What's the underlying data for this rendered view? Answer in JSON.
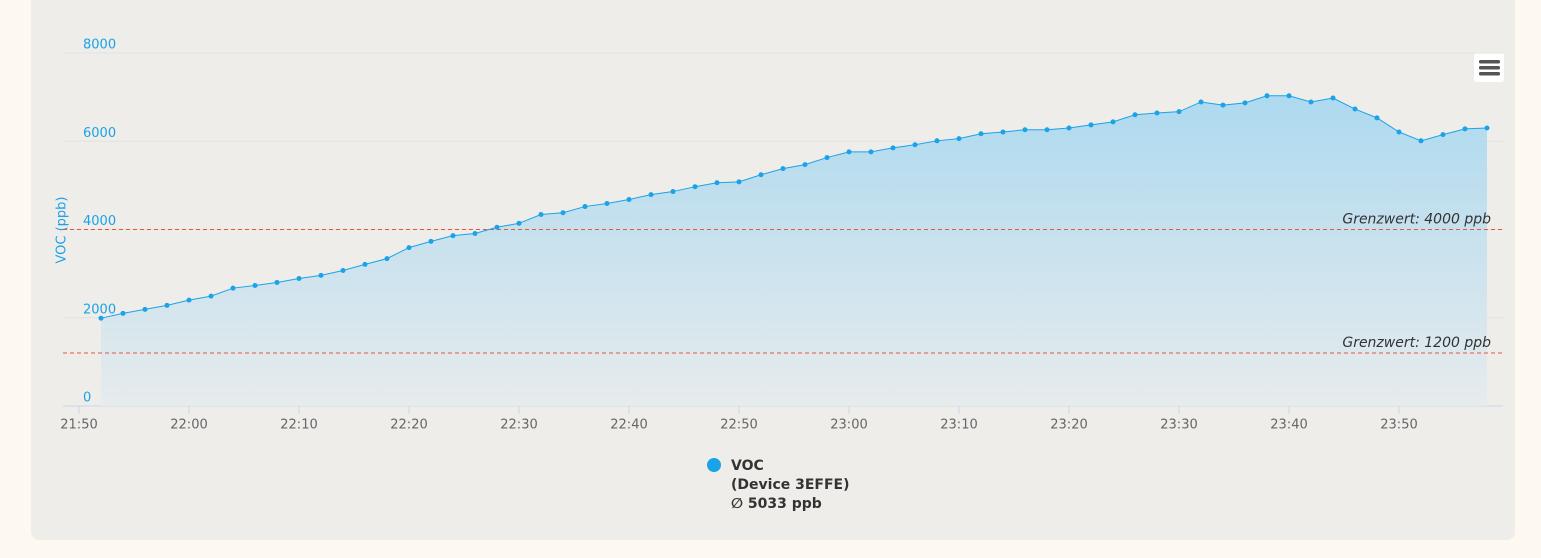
{
  "chart_data": {
    "type": "area",
    "y_axis_label": "VOC (ppb)",
    "xlim": [
      "21:48",
      "23:59"
    ],
    "xticks": [
      "21:50",
      "22:00",
      "22:10",
      "22:20",
      "22:30",
      "22:40",
      "22:50",
      "23:00",
      "23:10",
      "23:20",
      "23:30",
      "23:40",
      "23:50"
    ],
    "ylim": [
      0,
      8000
    ],
    "yticks": [
      0,
      2000,
      4000,
      6000,
      8000
    ],
    "grid": true,
    "plot_lines": [
      {
        "value": 4000,
        "label": "Grenzwert: 4000 ppb",
        "color": "#e8553a"
      },
      {
        "value": 1200,
        "label": "Grenzwert: 1200 ppb",
        "color": "#e8553a"
      }
    ],
    "series": [
      {
        "name": "VOC",
        "device": "(Device 3EFFE)",
        "average": "∅ 5033 ppb",
        "color": "#1aa3e8",
        "x": [
          "21:52",
          "21:54",
          "21:56",
          "21:58",
          "22:00",
          "22:02",
          "22:04",
          "22:06",
          "22:08",
          "22:10",
          "22:12",
          "22:14",
          "22:16",
          "22:18",
          "22:20",
          "22:22",
          "22:24",
          "22:26",
          "22:28",
          "22:30",
          "22:32",
          "22:34",
          "22:36",
          "22:38",
          "22:40",
          "22:42",
          "22:44",
          "22:46",
          "22:48",
          "22:50",
          "22:52",
          "22:54",
          "22:56",
          "22:58",
          "23:00",
          "23:02",
          "23:04",
          "23:06",
          "23:08",
          "23:10",
          "23:12",
          "23:14",
          "23:16",
          "23:18",
          "23:20",
          "23:22",
          "23:24",
          "23:26",
          "23:28",
          "23:30",
          "23:32",
          "23:34",
          "23:36",
          "23:38",
          "23:40",
          "23:42",
          "23:44",
          "23:46",
          "23:48",
          "23:50",
          "23:52",
          "23:54",
          "23:56",
          "23:58"
        ],
        "values": [
          1990,
          2100,
          2190,
          2280,
          2400,
          2490,
          2670,
          2730,
          2800,
          2890,
          2960,
          3070,
          3210,
          3340,
          3590,
          3730,
          3860,
          3910,
          4050,
          4140,
          4340,
          4380,
          4520,
          4590,
          4680,
          4790,
          4860,
          4970,
          5060,
          5080,
          5240,
          5380,
          5470,
          5630,
          5760,
          5760,
          5850,
          5920,
          6010,
          6060,
          6170,
          6210,
          6260,
          6260,
          6300,
          6370,
          6440,
          6600,
          6640,
          6670,
          6890,
          6820,
          6870,
          7030,
          7030,
          6890,
          6980,
          6730,
          6530,
          6210,
          6010,
          6150,
          6280,
          6300
        ]
      }
    ]
  }
}
